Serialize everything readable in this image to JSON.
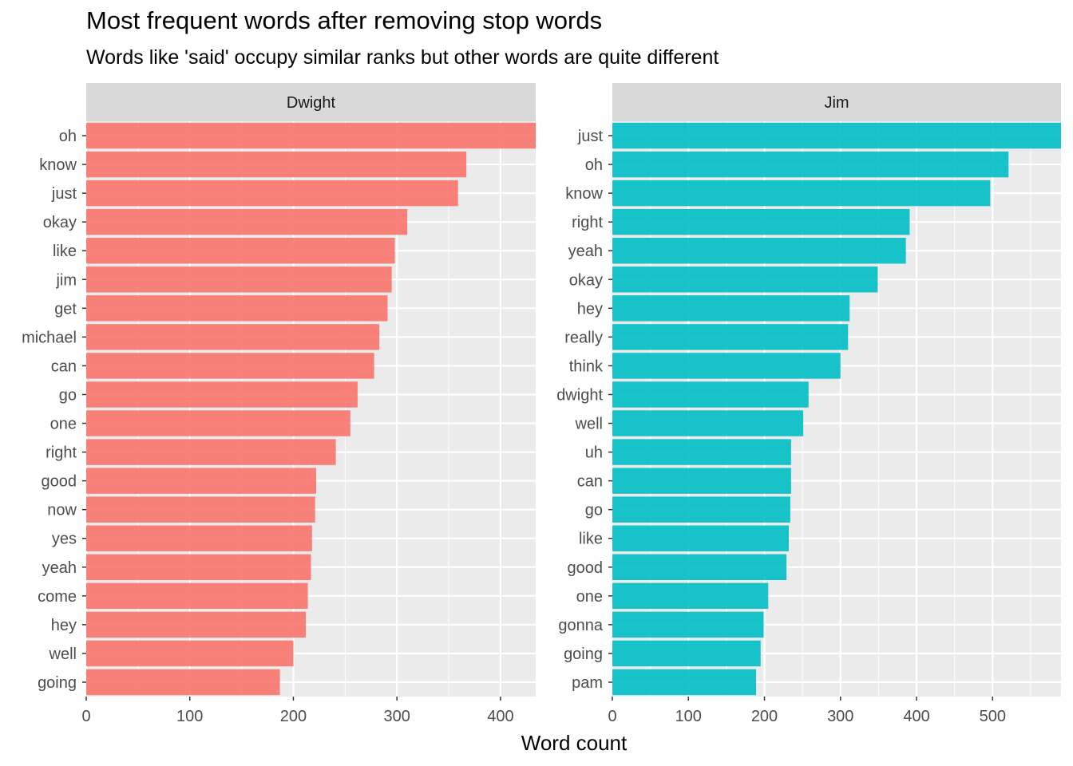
{
  "chart_data": {
    "type": "bar",
    "orientation": "horizontal",
    "title": "Most frequent words after removing stop words",
    "subtitle": "Words like 'said' occupy similar ranks but other words are quite different",
    "xlabel": "Word count",
    "ylabel": "",
    "grid": true,
    "legend": "none",
    "panels": [
      {
        "name": "Dwight",
        "color": "#F8766D",
        "xlim": [
          0,
          434
        ],
        "xticks": [
          0,
          100,
          200,
          300,
          400
        ],
        "categories": [
          "oh",
          "know",
          "just",
          "okay",
          "like",
          "jim",
          "get",
          "michael",
          "can",
          "go",
          "one",
          "right",
          "good",
          "now",
          "yes",
          "yeah",
          "come",
          "hey",
          "well",
          "going"
        ],
        "values": [
          434,
          367,
          359,
          310,
          298,
          295,
          291,
          283,
          278,
          262,
          255,
          241,
          222,
          221,
          218,
          217,
          214,
          212,
          200,
          187
        ]
      },
      {
        "name": "Jim",
        "color": "#00BFC4",
        "xlim": [
          0,
          590
        ],
        "xticks": [
          0,
          100,
          200,
          300,
          400,
          500
        ],
        "categories": [
          "just",
          "oh",
          "know",
          "right",
          "yeah",
          "okay",
          "hey",
          "really",
          "think",
          "dwight",
          "well",
          "uh",
          "can",
          "go",
          "like",
          "good",
          "one",
          "gonna",
          "going",
          "pam"
        ],
        "values": [
          590,
          521,
          497,
          391,
          386,
          349,
          312,
          310,
          300,
          258,
          251,
          235,
          235,
          234,
          232,
          229,
          205,
          199,
          195,
          189
        ]
      }
    ]
  }
}
